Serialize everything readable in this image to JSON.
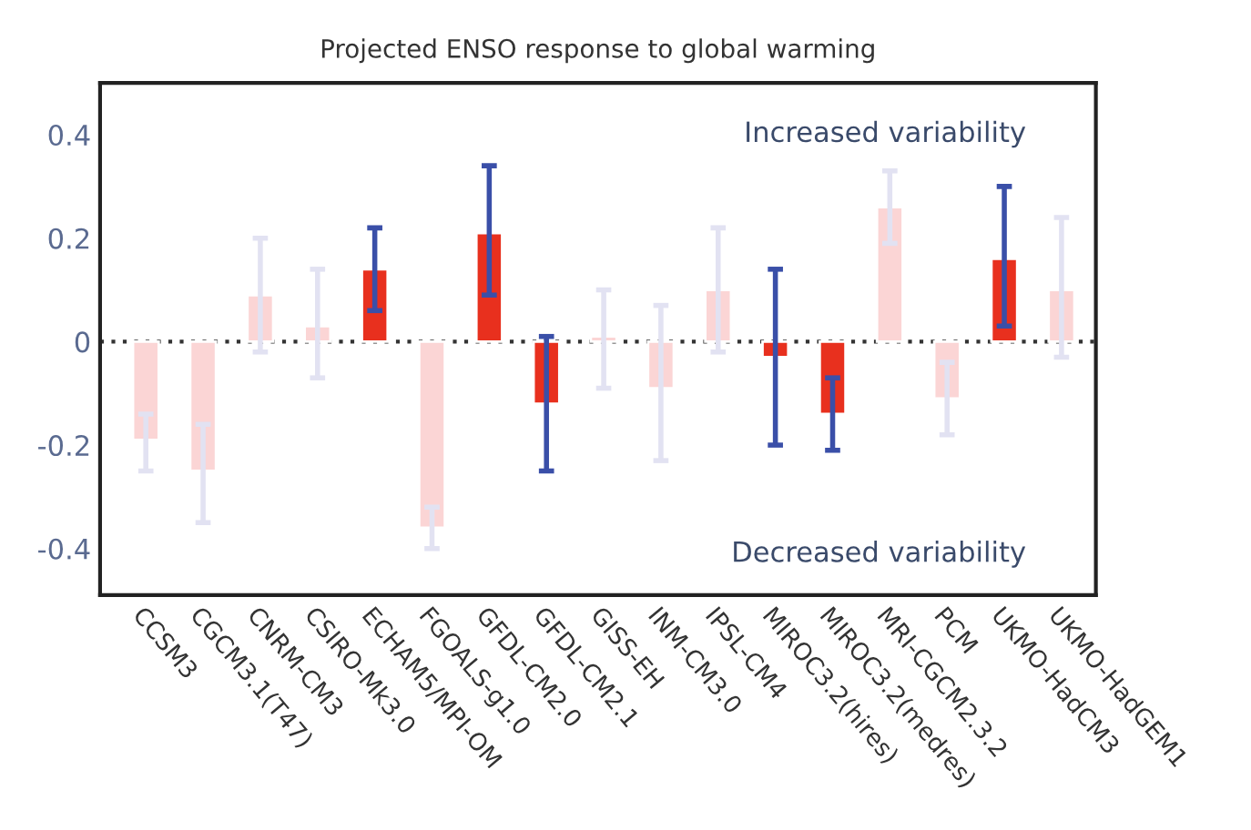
{
  "chart_data": {
    "type": "bar",
    "title": "Projected ENSO response to global warming",
    "categories": [
      "CCSM3",
      "CGCM3.1(T47)",
      "CNRM-CM3",
      "CSIRO-Mk3.0",
      "ECHAM5/MPI-OM",
      "FGOALS-g1.0",
      "GFDL-CM2.0",
      "GFDL-CM2.1",
      "GISS-EH",
      "INM-CM3.0",
      "IPSL-CM4",
      "MIROC3.2(hires)",
      "MIROC3.2(medres)",
      "MRI-CGCM2.3.2",
      "PCM",
      "UKMO-HadCM3",
      "UKMO-HadGEM1"
    ],
    "series": [
      {
        "color": "#e8301e",
        "values": [
          null,
          null,
          null,
          null,
          0.14,
          null,
          0.21,
          -0.12,
          null,
          null,
          null,
          -0.03,
          -0.14,
          null,
          null,
          0.16,
          null
        ],
        "errors": [
          null,
          null,
          null,
          null,
          [
            0.06,
            0.22
          ],
          null,
          [
            0.09,
            0.34
          ],
          [
            -0.25,
            0.01
          ],
          null,
          null,
          null,
          [
            -0.2,
            0.14
          ],
          [
            -0.21,
            -0.07
          ],
          null,
          null,
          [
            0.03,
            0.3
          ],
          null
        ]
      },
      {
        "color": "#fbd5d5",
        "values": [
          -0.19,
          -0.25,
          0.09,
          0.03,
          null,
          -0.36,
          null,
          null,
          0.01,
          -0.09,
          0.1,
          null,
          null,
          0.26,
          -0.11,
          null,
          0.1
        ],
        "errors": [
          [
            -0.25,
            -0.14
          ],
          [
            -0.35,
            -0.16
          ],
          [
            -0.02,
            0.2
          ],
          [
            -0.07,
            0.14
          ],
          null,
          [
            -0.4,
            -0.32
          ],
          null,
          null,
          [
            -0.09,
            0.1
          ],
          [
            -0.23,
            0.07
          ],
          [
            -0.02,
            0.22
          ],
          null,
          null,
          [
            0.19,
            0.33
          ],
          [
            -0.18,
            -0.04
          ],
          null,
          [
            -0.03,
            0.24
          ]
        ]
      }
    ],
    "ylim": [
      -0.49,
      0.5
    ],
    "yticks": [
      -0.4,
      -0.2,
      0,
      0.2,
      0.4
    ],
    "ref_lines": [
      {
        "axis": "y",
        "value": 0,
        "line_style": "dotted",
        "color": "#333333"
      }
    ],
    "annotations": [
      "Increased variability",
      "Decreased variability"
    ],
    "grid": false,
    "legend": false
  }
}
